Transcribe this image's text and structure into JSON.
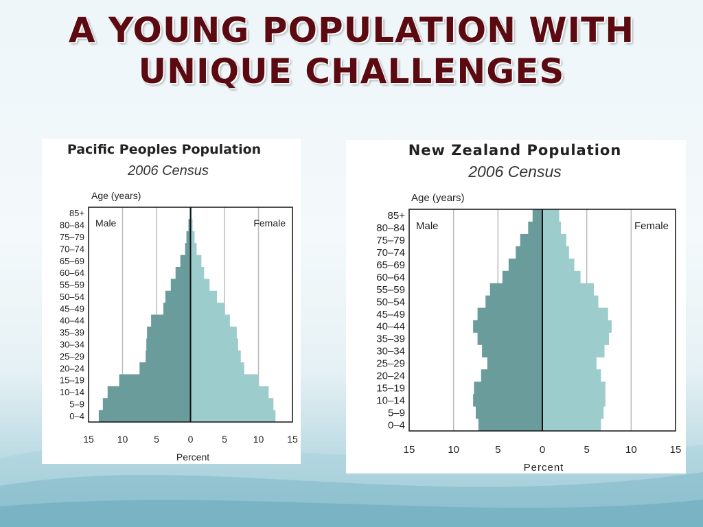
{
  "slide": {
    "title_line1": "A YOUNG POPULATION WITH",
    "title_line2": "UNIQUE CHALLENGES"
  },
  "colors": {
    "male": "#6a9c9c",
    "female": "#9ccccc",
    "title": "#5a0a10",
    "grid": "#bbbbbb"
  },
  "chart_data": [
    {
      "type": "bar",
      "orientation": "horizontal-population-pyramid",
      "title": "Pacific Peoples Population",
      "subtitle": "2006 Census",
      "ylabel": "Age (years)",
      "xlabel": "Percent",
      "left_label": "Male",
      "right_label": "Female",
      "categories": [
        "0–4",
        "5–9",
        "10–14",
        "15–19",
        "20–24",
        "25–29",
        "30–34",
        "35–39",
        "40–44",
        "45–49",
        "50–54",
        "55–59",
        "60–64",
        "65–69",
        "70–74",
        "75–79",
        "80–84",
        "85+"
      ],
      "xticks": [
        "15",
        "10",
        "5",
        "0",
        "5",
        "10",
        "15"
      ],
      "xlim": [
        -15,
        15
      ],
      "grid": true,
      "series": [
        {
          "name": "Male",
          "values": [
            13.5,
            12.9,
            12.2,
            10.5,
            7.5,
            6.6,
            6.5,
            6.4,
            5.8,
            4.0,
            3.7,
            2.9,
            2.2,
            1.5,
            0.8,
            0.6,
            0.3,
            0.1
          ]
        },
        {
          "name": "Female",
          "values": [
            12.5,
            12.2,
            11.5,
            10.0,
            7.9,
            7.4,
            7.0,
            6.8,
            5.8,
            5.0,
            3.9,
            2.8,
            2.0,
            1.6,
            0.9,
            0.6,
            0.3,
            0.2
          ]
        }
      ]
    },
    {
      "type": "bar",
      "orientation": "horizontal-population-pyramid",
      "title": "New Zealand Population",
      "subtitle": "2006 Census",
      "ylabel": "Age (years)",
      "xlabel": "Percent",
      "left_label": "Male",
      "right_label": "Female",
      "categories": [
        "0–4",
        "5–9",
        "10–14",
        "15–19",
        "20–24",
        "25–29",
        "30–34",
        "35–39",
        "40–44",
        "45–49",
        "50–54",
        "55–59",
        "60–64",
        "65–69",
        "70–74",
        "75–79",
        "80–84",
        "85+"
      ],
      "xticks": [
        "15",
        "10",
        "5",
        "0",
        "5",
        "10",
        "15"
      ],
      "xlim": [
        -15,
        15
      ],
      "grid": true,
      "series": [
        {
          "name": "Male",
          "values": [
            7.2,
            7.5,
            7.8,
            7.7,
            6.9,
            6.2,
            6.8,
            7.3,
            7.8,
            7.3,
            6.4,
            5.9,
            4.5,
            3.8,
            3.0,
            2.5,
            1.6,
            1.1
          ]
        },
        {
          "name": "Female",
          "values": [
            6.6,
            6.9,
            7.1,
            7.1,
            6.6,
            6.1,
            7.0,
            7.5,
            7.8,
            7.4,
            6.3,
            5.8,
            4.3,
            3.6,
            3.0,
            2.7,
            2.1,
            1.9
          ]
        }
      ]
    }
  ]
}
